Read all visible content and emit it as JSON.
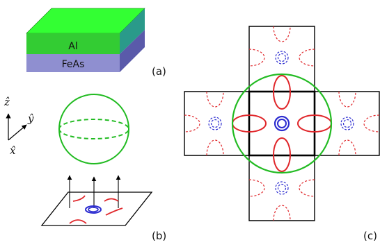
{
  "slab": {
    "top_layer_label": "Al",
    "bottom_layer_label": "FeAs",
    "colors": {
      "al_front": "#33cc33",
      "al_top": "#33ff33",
      "al_side": "#2a9a8a",
      "feas_front": "#8f8fd0",
      "feas_side": "#5a5aaa"
    }
  },
  "axes": {
    "z_label": "ẑ",
    "y_label": "ŷ",
    "x_label": "x̂"
  },
  "panels": {
    "a": "(a)",
    "b": "(b)",
    "c": "(c)"
  },
  "colors": {
    "electron_pocket": "#e0262a",
    "hole_pocket": "#2b2bd0",
    "al_sphere": "#22bb22",
    "outline": "#000000"
  }
}
